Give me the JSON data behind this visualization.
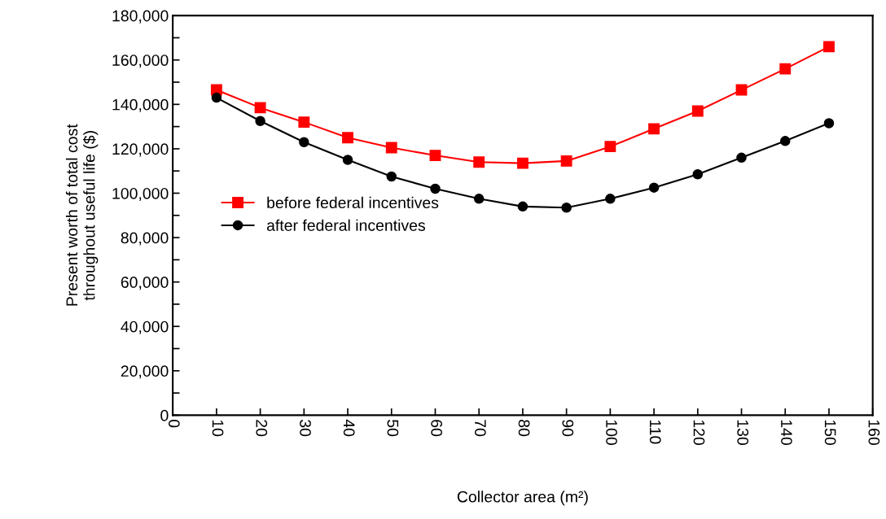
{
  "chart_data": {
    "type": "line",
    "xlabel": "Collector area (m²)",
    "ylabel": "Present worth of total cost\nthroughout useful life ($)",
    "x": [
      10,
      20,
      30,
      40,
      50,
      60,
      70,
      80,
      90,
      100,
      110,
      120,
      130,
      140,
      150
    ],
    "series": [
      {
        "name": "before federal incentives",
        "color": "#ff0000",
        "marker": "square",
        "values": [
          146500,
          138500,
          132000,
          125000,
          120500,
          117000,
          114000,
          113500,
          114500,
          121000,
          129000,
          137000,
          146500,
          156000,
          166000
        ]
      },
      {
        "name": "after federal incentives",
        "color": "#000000",
        "marker": "circle",
        "values": [
          143000,
          132500,
          123000,
          115000,
          107500,
          102000,
          97500,
          94000,
          93500,
          97500,
          102500,
          108500,
          116000,
          123500,
          131500
        ]
      }
    ],
    "xlim": [
      0,
      160
    ],
    "xticks": [
      0,
      10,
      20,
      30,
      40,
      50,
      60,
      70,
      80,
      90,
      100,
      110,
      120,
      130,
      140,
      150,
      160
    ],
    "ylim": [
      0,
      180000
    ],
    "yticks": [
      {
        "value": 0,
        "label": "0"
      },
      {
        "value": 10000,
        "label": null
      },
      {
        "value": 20000,
        "label": "20,000"
      },
      {
        "value": 30000,
        "label": null
      },
      {
        "value": 40000,
        "label": "40,000"
      },
      {
        "value": 50000,
        "label": null
      },
      {
        "value": 60000,
        "label": "60,000"
      },
      {
        "value": 70000,
        "label": null
      },
      {
        "value": 80000,
        "label": "80,000"
      },
      {
        "value": 90000,
        "label": null
      },
      {
        "value": 100000,
        "label": "100,000"
      },
      {
        "value": 110000,
        "label": null
      },
      {
        "value": 120000,
        "label": "120,000"
      },
      {
        "value": 130000,
        "label": null
      },
      {
        "value": 140000,
        "label": "140,000"
      },
      {
        "value": 150000,
        "label": null
      },
      {
        "value": 160000,
        "label": "160,000"
      },
      {
        "value": 170000,
        "label": null
      },
      {
        "value": 180000,
        "label": "180,000"
      }
    ],
    "grid": false,
    "legend": "center left",
    "line_style": "solid"
  }
}
